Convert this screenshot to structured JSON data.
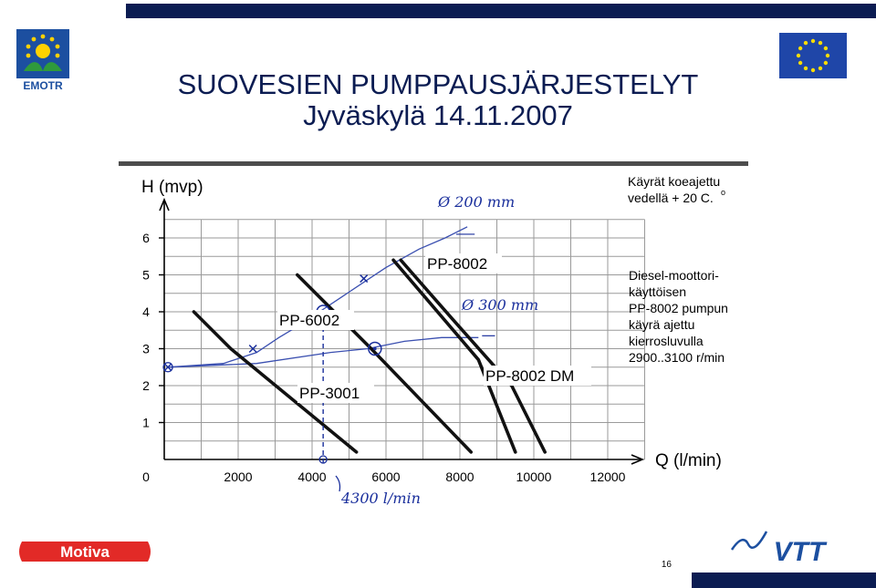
{
  "slide": {
    "title": "SUOVESIEN PUMPPAUSJÄRJESTELYT",
    "subtitle": "Jyväskylä 14.11.2007",
    "page_number": "16",
    "logos": {
      "left_top": {
        "text": "EMOTR",
        "icon": "emotr-logo-icon"
      },
      "right_top": {
        "icon": "eu-flag-icon"
      },
      "bottom_left": {
        "text": "Motiva",
        "icon": "motiva-logo-icon"
      },
      "bottom_right": {
        "text": "VTT",
        "icon": "vtt-logo-icon"
      }
    },
    "colors": {
      "navy": "#0b1c52",
      "motiva_red": "#e22a27",
      "vtt_blue": "#1c4fa0",
      "handwriting": "#1a2f9c"
    }
  },
  "chart_data": {
    "type": "line",
    "ylabel": "H (mvp)",
    "xlabel": "Q (l/min)",
    "xlim": [
      0,
      13000
    ],
    "ylim": [
      0,
      6.5
    ],
    "x_ticks": [
      0,
      2000,
      4000,
      6000,
      8000,
      10000,
      12000
    ],
    "x_tick_labels": [
      "0",
      "2000",
      "4000",
      "6000",
      "8000",
      "10000",
      "12000"
    ],
    "y_ticks": [
      1,
      2,
      3,
      4,
      5,
      6
    ],
    "y_tick_labels": [
      "1",
      "2",
      "3",
      "4",
      "5",
      "6"
    ],
    "grid": true,
    "note_top_right": [
      "Käyrät koeajettu",
      "vedellä + 20 C."
    ],
    "degree_mark": "o",
    "note_right": [
      "Diesel-moottori-",
      "käyttöisen",
      "PP-8002 pumpun",
      "käyrä ajettu",
      "kierrosluvulla",
      "2900..3100 r/min"
    ],
    "series": [
      {
        "name": "PP-3001",
        "points": [
          [
            800,
            4.0
          ],
          [
            1800,
            3.0
          ],
          [
            5200,
            0.2
          ]
        ]
      },
      {
        "name": "PP-6002",
        "points": [
          [
            3600,
            5.0
          ],
          [
            5600,
            3.0
          ],
          [
            8300,
            0.2
          ]
        ]
      },
      {
        "name": "PP-8002",
        "points": [
          [
            6200,
            5.4
          ],
          [
            8500,
            2.7
          ],
          [
            9500,
            0.2
          ]
        ]
      },
      {
        "name": "PP-8002 DM",
        "points": [
          [
            6400,
            5.4
          ],
          [
            7800,
            3.8
          ],
          [
            9400,
            2.0
          ],
          [
            10300,
            0.2
          ]
        ]
      }
    ],
    "system_curves": [
      {
        "name": "Ø 200 mm",
        "points": [
          [
            100,
            2.5
          ],
          [
            1600,
            2.6
          ],
          [
            2500,
            2.9
          ],
          [
            3100,
            3.3
          ],
          [
            3600,
            3.6
          ],
          [
            4200,
            4.0
          ],
          [
            4800,
            4.4
          ],
          [
            5400,
            4.8
          ],
          [
            6000,
            5.2
          ],
          [
            6900,
            5.7
          ],
          [
            7600,
            6.0
          ],
          [
            8200,
            6.3
          ]
        ]
      },
      {
        "name": "Ø 300 mm",
        "points": [
          [
            100,
            2.5
          ],
          [
            2500,
            2.6
          ],
          [
            4500,
            2.9
          ],
          [
            5500,
            3.0
          ],
          [
            6500,
            3.2
          ],
          [
            7500,
            3.3
          ],
          [
            8500,
            3.3
          ]
        ]
      }
    ],
    "measured_points": [
      [
        100,
        2.5
      ],
      [
        2400,
        3.0
      ],
      [
        3800,
        3.9
      ],
      [
        5400,
        4.9
      ]
    ],
    "operating_points": [
      [
        4300,
        4.0
      ],
      [
        5700,
        3.0
      ]
    ],
    "annotations": {
      "curve_200": "Ø 200 mm",
      "curve_300": "Ø 300 mm",
      "flow_mark": "4300 l/min",
      "flow_value": 4300
    }
  }
}
